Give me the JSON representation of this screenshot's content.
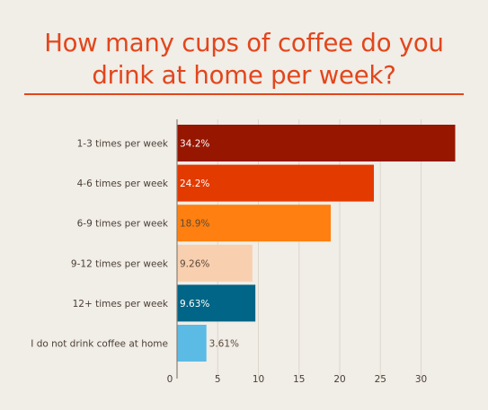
{
  "chart_data": {
    "type": "bar",
    "orientation": "horizontal",
    "title_line1": "How many cups of coffee do you",
    "title_line2": "drink at home per week?",
    "categories": [
      "1-3 times per week",
      "4-6 times per week",
      "6-9 times per week",
      "9-12 times per week",
      "12+ times per week",
      "I do not drink coffee at home"
    ],
    "values": [
      34.2,
      24.2,
      18.9,
      9.26,
      9.63,
      3.61
    ],
    "value_labels": [
      "34.2%",
      "24.2%",
      "18.9%",
      "9.26%",
      "9.63%",
      "3.61%"
    ],
    "colors": [
      "#961600",
      "#e33a00",
      "#ff7f10",
      "#f8cfaf",
      "#006586",
      "#5bbbe4"
    ],
    "label_colors": [
      "#ffffff",
      "#ffffff",
      "#5a4a3a",
      "#5a4a3a",
      "#ffffff",
      "#5a4a3a"
    ],
    "label_inside": [
      true,
      true,
      true,
      true,
      true,
      false
    ],
    "xticks": [
      0,
      5,
      10,
      15,
      20,
      25,
      30
    ],
    "xlim": [
      0,
      35
    ],
    "grid": true
  }
}
